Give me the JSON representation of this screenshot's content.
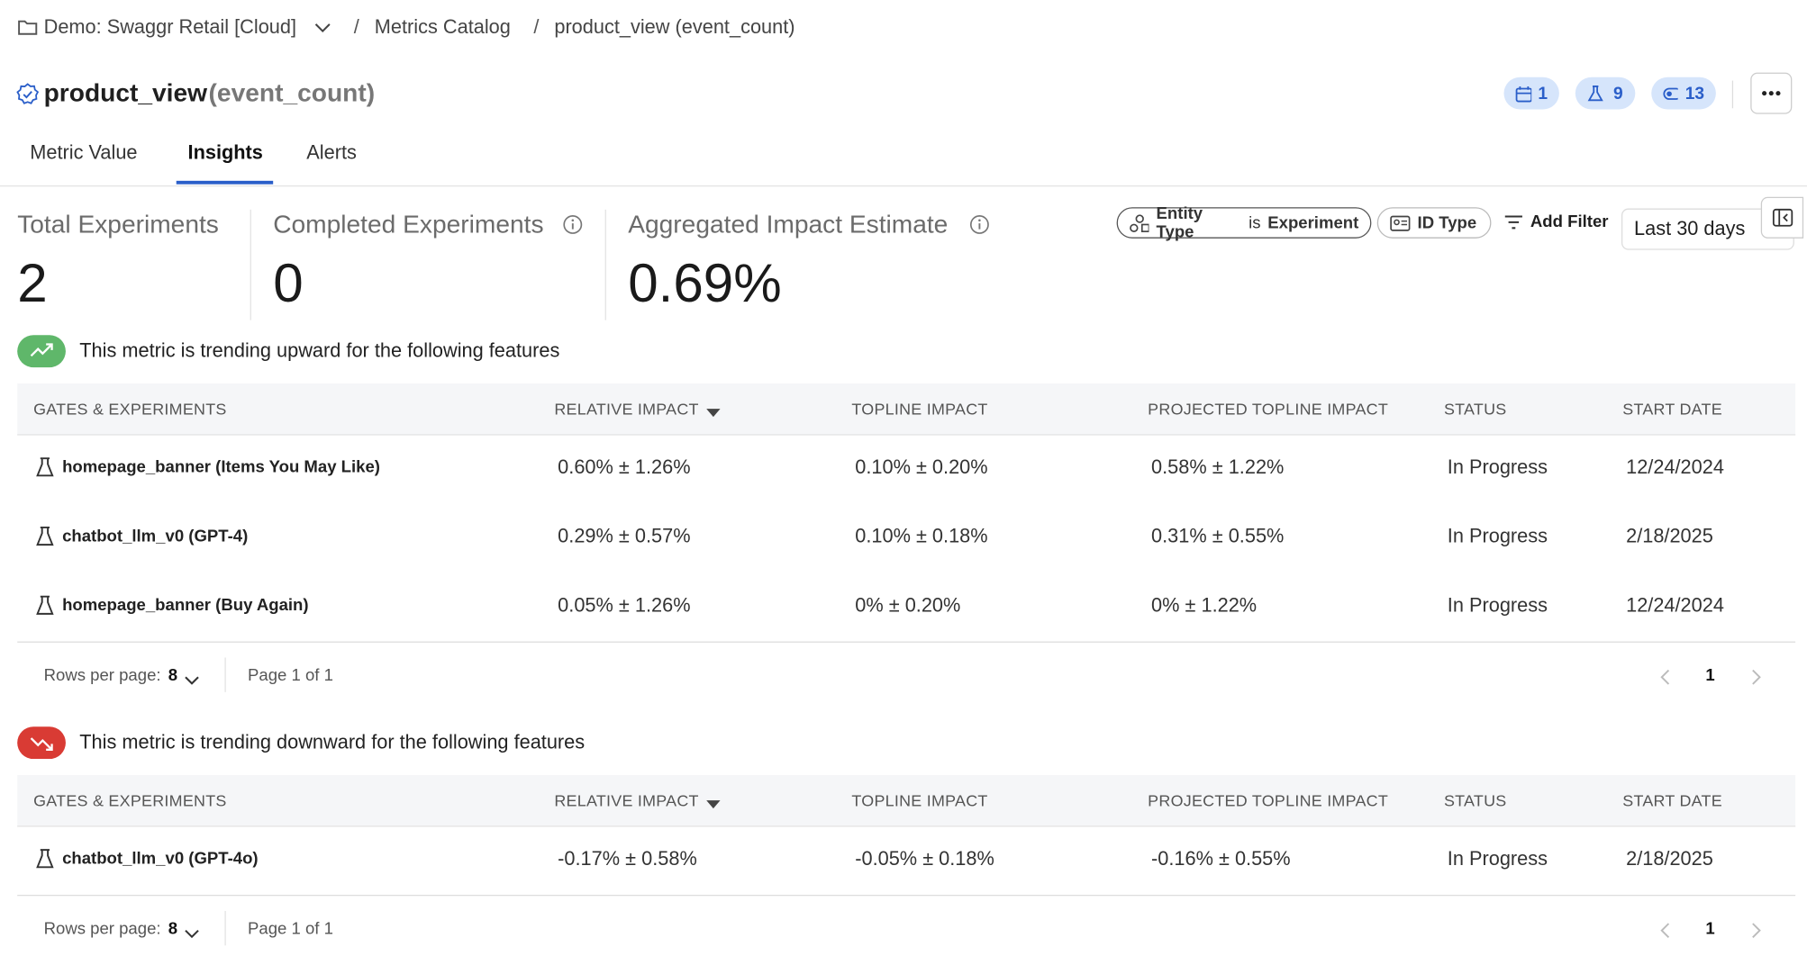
{
  "breadcrumb": {
    "project": "Demo: Swaggr Retail [Cloud]",
    "catalog": "Metrics Catalog",
    "current": "product_view (event_count)"
  },
  "header": {
    "name": "product_view",
    "qualifier": "(event_count)",
    "badges": [
      "1",
      "9",
      "13"
    ]
  },
  "tabs": [
    "Metric Value",
    "Insights",
    "Alerts"
  ],
  "stats": [
    {
      "label": "Total Experiments",
      "value": "2"
    },
    {
      "label": "Completed Experiments",
      "value": "0"
    },
    {
      "label": "Aggregated Impact Estimate",
      "value": "0.69%"
    }
  ],
  "filters": {
    "entity_label": "Entity Type",
    "entity_op": "is",
    "entity_value": "Experiment",
    "id_type": "ID Type",
    "add": "Add Filter",
    "range": "Last 30 days"
  },
  "sections": [
    {
      "message": "This metric is trending upward for the following features",
      "columns": [
        "GATES & EXPERIMENTS",
        "RELATIVE IMPACT",
        "TOPLINE IMPACT",
        "PROJECTED TOPLINE IMPACT",
        "STATUS",
        "START DATE"
      ],
      "rows": [
        [
          "homepage_banner (Items You May Like)",
          "0.60% ± 1.26%",
          "0.10% ± 0.20%",
          "0.58% ± 1.22%",
          "In Progress",
          "12/24/2024"
        ],
        [
          "chatbot_llm_v0 (GPT-4)",
          "0.29% ± 0.57%",
          "0.10% ± 0.18%",
          "0.31% ± 0.55%",
          "In Progress",
          "2/18/2025"
        ],
        [
          "homepage_banner (Buy Again)",
          "0.05% ± 1.26%",
          "0% ± 0.20%",
          "0% ± 1.22%",
          "In Progress",
          "12/24/2024"
        ]
      ],
      "rows_label": "Rows per page:",
      "rows_per_page": "8",
      "page_info": "Page 1 of 1",
      "page": "1"
    },
    {
      "message": "This metric is trending downward for the following features",
      "columns": [
        "GATES & EXPERIMENTS",
        "RELATIVE IMPACT",
        "TOPLINE IMPACT",
        "PROJECTED TOPLINE IMPACT",
        "STATUS",
        "START DATE"
      ],
      "rows": [
        [
          "chatbot_llm_v0 (GPT-4o)",
          "-0.17% ± 0.58%",
          "-0.05% ± 0.18%",
          "-0.16% ± 0.55%",
          "In Progress",
          "2/18/2025"
        ]
      ],
      "rows_label": "Rows per page:",
      "rows_per_page": "8",
      "page_info": "Page 1 of 1",
      "page": "1"
    }
  ]
}
